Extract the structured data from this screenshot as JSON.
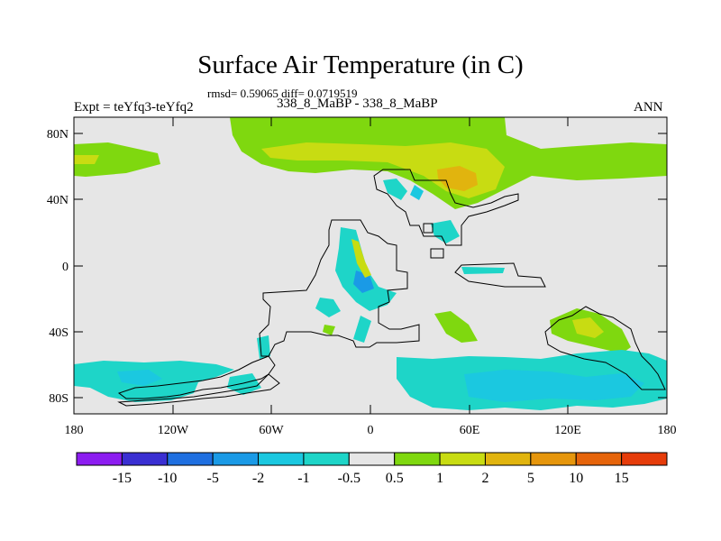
{
  "title": "Surface Air Temperature (in C)",
  "stats": "rmsd= 0.59065 diff= 0.0719519",
  "periods": "338_8_MaBP - 338_8_MaBP",
  "expt": "Expt = teYfq3-teYfq2",
  "season": "ANN",
  "axes": {
    "lat_ticks": [
      "80N",
      "40N",
      "0",
      "40S",
      "80S"
    ],
    "lon_ticks": [
      "180",
      "120W",
      "60W",
      "0",
      "60E",
      "120E",
      "180"
    ]
  },
  "colorbar": {
    "colors": [
      "#8c1cf0",
      "#3a2fd2",
      "#1f6fe0",
      "#1a9ae6",
      "#1bc8e0",
      "#1ed5c8",
      "#e6e6e6",
      "#7fd80f",
      "#c8dc12",
      "#e1b40e",
      "#e6960c",
      "#e6640a",
      "#e63c0a"
    ],
    "labels": [
      "-15",
      "-10",
      "-5",
      "-2",
      "-1",
      "-0.5",
      "0.5",
      "1",
      "2",
      "5",
      "10",
      "15"
    ]
  },
  "legend_colors": {
    "background": "#e6e6e6",
    "green": "#7fd80f",
    "yellow_green": "#c8dc12",
    "orange": "#e1b40e",
    "cyan": "#1ed5c8",
    "light_blue": "#1bc8e0",
    "blue": "#1a9ae6"
  }
}
